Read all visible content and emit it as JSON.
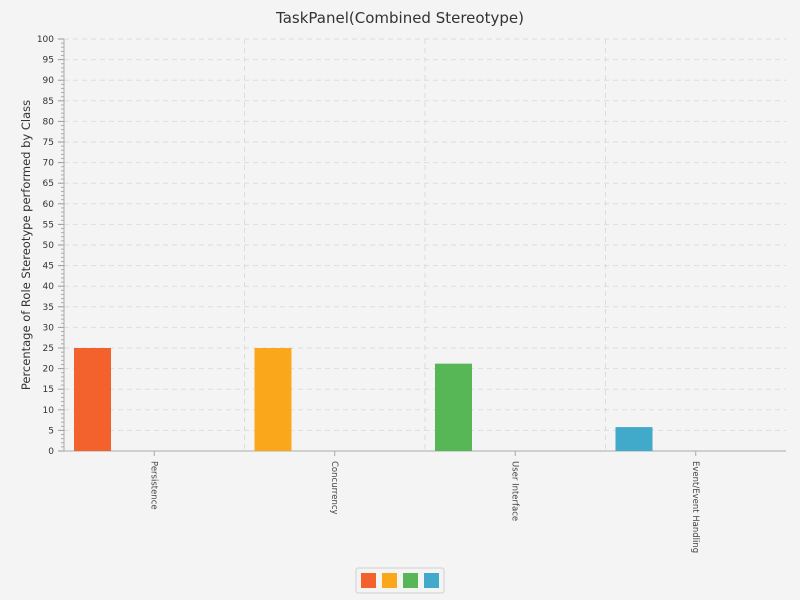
{
  "chart_data": {
    "type": "bar",
    "title": "TaskPanel(Combined Stereotype)",
    "xlabel": "",
    "ylabel": "Percentage of Role Stereotype performed by Class",
    "ylim": [
      0,
      100
    ],
    "ytick_step": 5,
    "grid": true,
    "legend_position": "bottom-center",
    "categories": [
      "Persistence",
      "Concurrency",
      "User Interface",
      "Event/Event Handling"
    ],
    "values": [
      25,
      25,
      21.2,
      5.8
    ],
    "colors": [
      "#f3622d",
      "#fba71b",
      "#57b757",
      "#41a9c9"
    ]
  }
}
